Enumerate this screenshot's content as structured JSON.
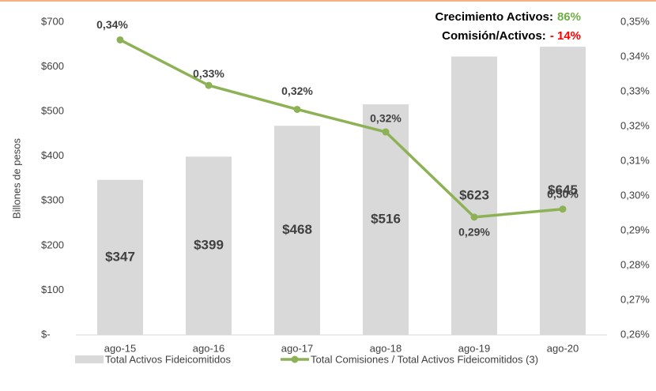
{
  "chart_data": {
    "type": "combo",
    "y_label": "Billones de pesos",
    "categories": [
      "ago-15",
      "ago-16",
      "ago-17",
      "ago-18",
      "ago-19",
      "ago-20"
    ],
    "series": [
      {
        "name": "Total Activos Fideicomitidos",
        "type": "bar",
        "color": "#d9d9d9",
        "values": [
          347,
          399,
          468,
          516,
          623,
          645
        ],
        "value_labels": [
          "$347",
          "$399",
          "$468",
          "$516",
          "$623",
          "$645"
        ]
      },
      {
        "name": "Total Comisiones / Total Activos Fideicomitidos (3)",
        "type": "line",
        "axis": "y2",
        "color": "#8db255",
        "values": [
          0.3449,
          0.3318,
          0.3249,
          0.3184,
          0.2939,
          0.2962
        ],
        "value_labels": [
          "0,34%",
          "0,33%",
          "0,32%",
          "0,32%",
          "0,29%",
          "0,30%"
        ]
      }
    ],
    "ylim": [
      0,
      700
    ],
    "yticks": [
      {
        "value": 0,
        "label": "$-"
      },
      {
        "value": 100,
        "label": "$100"
      },
      {
        "value": 200,
        "label": "$200"
      },
      {
        "value": 300,
        "label": "$300"
      },
      {
        "value": 400,
        "label": "$400"
      },
      {
        "value": 500,
        "label": "$500"
      },
      {
        "value": 600,
        "label": "$600"
      },
      {
        "value": 700,
        "label": "$700"
      }
    ],
    "y2lim": [
      0.26,
      0.35
    ],
    "y2ticks": [
      {
        "value": 0.26,
        "label": "0,26%"
      },
      {
        "value": 0.27,
        "label": "0,27%"
      },
      {
        "value": 0.28,
        "label": "0,28%"
      },
      {
        "value": 0.29,
        "label": "0,29%"
      },
      {
        "value": 0.3,
        "label": "0,30%"
      },
      {
        "value": 0.31,
        "label": "0,31%"
      },
      {
        "value": 0.32,
        "label": "0,32%"
      },
      {
        "value": 0.33,
        "label": "0,33%"
      },
      {
        "value": 0.34,
        "label": "0,34%"
      },
      {
        "value": 0.35,
        "label": "0,35%"
      }
    ],
    "grid": false,
    "legend": "bottom",
    "annotations": [
      {
        "text": "Crecimiento Activos:",
        "highlight": "86%",
        "color": "#70ad47"
      },
      {
        "text": "Comisión/Activos:",
        "highlight": "- 14%",
        "color": "#ff0000"
      }
    ]
  }
}
